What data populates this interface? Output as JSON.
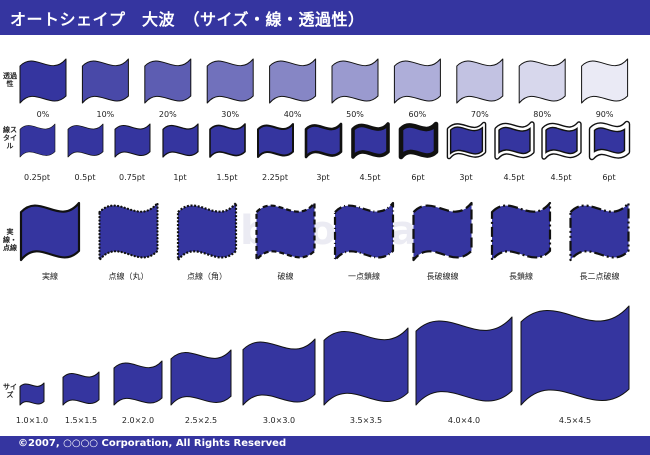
{
  "title": "オートシェイプ　大波　（サイズ・線・透過性）",
  "footer": "©2007, ○○○○ Corporation, All Rights Reserved",
  "watermark": "bizocean",
  "colors": {
    "bar": "#3535a0",
    "fill": "#35359f",
    "stroke": "#111111"
  },
  "rows": {
    "transparency": {
      "label": "透過性",
      "items": [
        "0%",
        "10%",
        "20%",
        "30%",
        "40%",
        "50%",
        "60%",
        "70%",
        "80%",
        "90%"
      ],
      "alpha": [
        1,
        0.9,
        0.8,
        0.7,
        0.6,
        0.5,
        0.4,
        0.3,
        0.2,
        0.1
      ]
    },
    "line_style": {
      "label": "線スタイル",
      "items": [
        "0.25pt",
        "0.5pt",
        "0.75pt",
        "1pt",
        "1.5pt",
        "2.25pt",
        "3pt",
        "4.5pt",
        "6pt",
        "3pt",
        "4.5pt",
        "4.5pt",
        "6pt"
      ]
    },
    "dash": {
      "label": "実線・点線",
      "items": [
        "実線",
        "点線（丸）",
        "点線（角）",
        "破線",
        "一点鎖線",
        "長破線線",
        "長鎖線",
        "長二点破線"
      ]
    },
    "size": {
      "label": "サイズ",
      "items": [
        "1.0×1.0",
        "1.5×1.5",
        "2.0×2.0",
        "2.5×2.5",
        "3.0×3.0",
        "3.5×3.5",
        "4.0×4.0",
        "4.5×4.5"
      ]
    }
  }
}
